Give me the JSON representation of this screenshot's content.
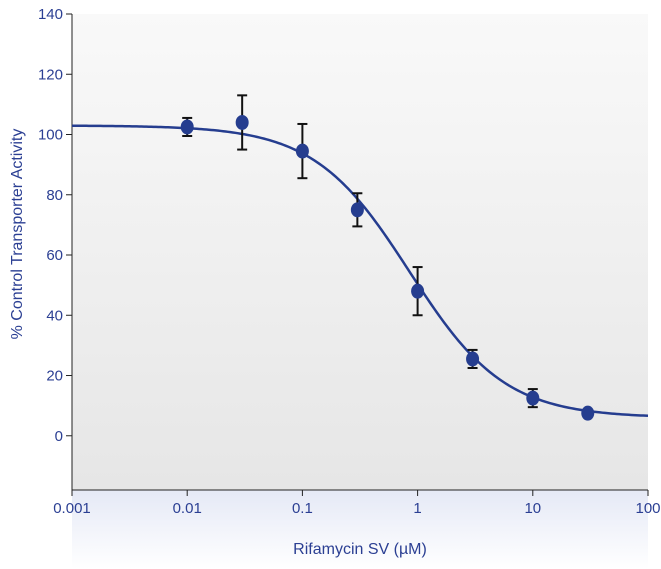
{
  "chart_data": {
    "type": "scatter",
    "title": "",
    "xlabel": "Rifamycin SV (µM)",
    "ylabel": "% Control Transporter Activity",
    "x_scale": "log",
    "xlim": [
      0.001,
      100
    ],
    "ylim": [
      -18,
      140
    ],
    "x_ticks": [
      0.001,
      0.01,
      0.1,
      1,
      10,
      100
    ],
    "x_tick_labels": [
      "0.001",
      "0.01",
      "0.1",
      "1",
      "10",
      "100"
    ],
    "y_ticks": [
      0,
      20,
      40,
      60,
      80,
      100,
      120,
      140
    ],
    "y_tick_labels": [
      "0",
      "20",
      "40",
      "60",
      "80",
      "100",
      "120",
      "140"
    ],
    "grid": false,
    "series": [
      {
        "x": [
          0.01,
          0.03,
          0.1,
          0.3,
          1,
          3,
          10,
          30
        ],
        "y": [
          102.5,
          104,
          94.5,
          75,
          48,
          25.5,
          12.5,
          7.5
        ],
        "error": [
          3,
          9,
          9,
          5.5,
          8,
          3,
          3,
          0
        ]
      }
    ],
    "fit_curve": {
      "model": "sigmoidal dose-response",
      "top": 103,
      "bottom": 6,
      "ec50": 0.85,
      "hill_slope": 1.05
    },
    "colors": {
      "marker": "#253d8f",
      "curve": "#253d8f",
      "error_bar": "#111111",
      "text": "#2b3f93",
      "plot_background_top": "#f9f9f9",
      "plot_background_bottom": "#e6e6e6",
      "x_band_top": "#e5e9f6",
      "x_band_bottom": "#ffffff"
    }
  }
}
